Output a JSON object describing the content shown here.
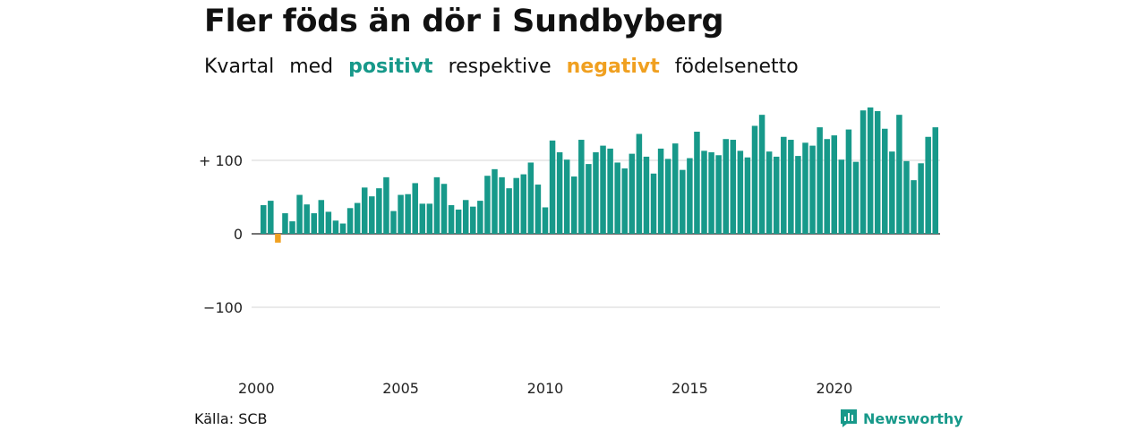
{
  "header": {
    "title": "Fler föds än dör i Sundbyberg",
    "subtitle": {
      "word1": "Kvartal",
      "word2": "med",
      "positive": "positivt",
      "word3": "respektive",
      "negative": "negativt",
      "word4": "födelsenetto"
    }
  },
  "footer": {
    "source": "Källa: SCB",
    "brand": "Newsworthy"
  },
  "colors": {
    "positive": "#17998a",
    "negative": "#f0a020"
  },
  "chart_data": {
    "type": "bar",
    "title": "Fler föds än dör i Sundbyberg",
    "x_ticks": [
      "2000",
      "2005",
      "2010",
      "2015",
      "2020"
    ],
    "y_ticks": [
      {
        "value": 100,
        "label": "+ 100"
      },
      {
        "value": 0,
        "label": "0"
      },
      {
        "value": -100,
        "label": "−100"
      }
    ],
    "ylim": [
      -125,
      175
    ],
    "grid": true,
    "start_year": 2000,
    "values": [
      39,
      45,
      -12,
      28,
      17,
      53,
      40,
      28,
      46,
      30,
      18,
      14,
      35,
      42,
      63,
      51,
      62,
      77,
      31,
      53,
      54,
      69,
      41,
      41,
      77,
      68,
      39,
      33,
      46,
      37,
      45,
      79,
      88,
      77,
      62,
      76,
      81,
      97,
      67,
      36,
      127,
      111,
      101,
      78,
      128,
      95,
      111,
      120,
      116,
      97,
      89,
      109,
      136,
      105,
      82,
      116,
      102,
      123,
      87,
      103,
      139,
      113,
      111,
      107,
      129,
      128,
      113,
      104,
      147,
      162,
      112,
      105,
      132,
      128,
      106,
      124,
      120,
      145,
      129,
      134,
      101,
      142,
      98,
      168,
      172,
      167,
      143,
      112,
      162,
      99,
      73,
      96,
      132,
      145
    ]
  }
}
